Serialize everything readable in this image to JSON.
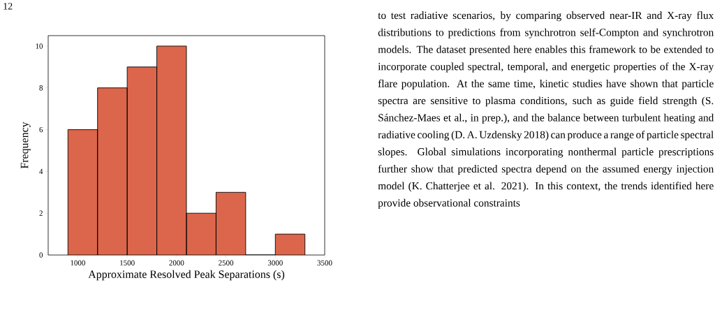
{
  "chart_data": {
    "type": "histogram",
    "bins": [
      900,
      1200,
      1500,
      1800,
      2100,
      2400,
      2700,
      3000,
      3300
    ],
    "values": [
      6,
      8,
      9,
      10,
      2,
      3,
      0,
      1
    ],
    "color": "#dc664b",
    "xlabel": "Approximate Resolved Peak Separations (s)",
    "ylabel": "Frequency",
    "xlim": [
      700,
      3500
    ],
    "ylim": [
      0,
      10.5
    ],
    "xticks": [
      1000,
      1500,
      2000,
      2500,
      3000,
      3500
    ],
    "yticks": [
      0,
      2,
      4,
      6,
      8,
      10
    ],
    "annotations": [
      "12",
      "to test radiative scenarios, by comparing observed near-IR and X-ray flux distributions to predictions from synchrotron self-Compton and synchrotron models. The dataset presented here enables this framework to be extended to incorporate coupled spectral, temporal, and energetic properties of the X-ray flare population. At the same time, kinetic studies have shown that particle spectra are sensitive to plasma conditions, such as guide field strength (S. Sánchez-Maes et al., in prep.), and the balance between turbulent heating and radiative cooling (D. A. Uzdensky 2018) can produce a range of particle spectral slopes. Global simulations incorporating nonthermal particle prescriptions further show that predicted spectra depend on the assumed energy injection model (K. Chatterjee et al. 2021). In this context, the trends identified here provide observational constraints"
    ]
  }
}
